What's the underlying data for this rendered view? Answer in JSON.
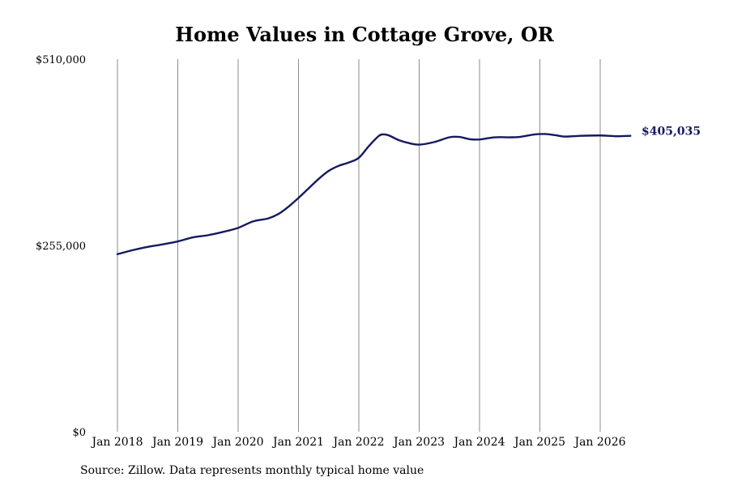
{
  "chart_data": {
    "type": "line",
    "title": "Home Values in Cottage Grove, OR",
    "source_note": "Source: Zillow. Data represents monthly typical home value",
    "ylim": [
      0,
      510000
    ],
    "yticks": [
      {
        "value": 0,
        "label": "$0"
      },
      {
        "value": 255000,
        "label": "$255,000"
      },
      {
        "value": 510000,
        "label": "$510,000"
      }
    ],
    "xticks": [
      {
        "value": "2018-01",
        "label": "Jan 2018"
      },
      {
        "value": "2019-01",
        "label": "Jan 2019"
      },
      {
        "value": "2020-01",
        "label": "Jan 2020"
      },
      {
        "value": "2021-01",
        "label": "Jan 2021"
      },
      {
        "value": "2022-01",
        "label": "Jan 2022"
      },
      {
        "value": "2023-01",
        "label": "Jan 2023"
      },
      {
        "value": "2024-01",
        "label": "Jan 2024"
      },
      {
        "value": "2025-01",
        "label": "Jan 2025"
      },
      {
        "value": "2026-01",
        "label": "Jan 2026"
      }
    ],
    "grid": "vertical",
    "line_color": "#141a5e",
    "end_label": "$405,035",
    "series": [
      {
        "points": [
          [
            "2018-01",
            243000
          ],
          [
            "2018-04",
            248500
          ],
          [
            "2018-07",
            253000
          ],
          [
            "2018-10",
            256500
          ],
          [
            "2019-01",
            260500
          ],
          [
            "2019-04",
            266000
          ],
          [
            "2019-07",
            269000
          ],
          [
            "2019-10",
            273500
          ],
          [
            "2020-01",
            279000
          ],
          [
            "2020-04",
            288000
          ],
          [
            "2020-07",
            292000
          ],
          [
            "2020-09",
            298000
          ],
          [
            "2020-11",
            308000
          ],
          [
            "2021-01",
            320000
          ],
          [
            "2021-03",
            333000
          ],
          [
            "2021-05",
            346000
          ],
          [
            "2021-07",
            357000
          ],
          [
            "2021-09",
            364000
          ],
          [
            "2021-11",
            368500
          ],
          [
            "2022-01",
            375000
          ],
          [
            "2022-03",
            391000
          ],
          [
            "2022-05",
            405000
          ],
          [
            "2022-06",
            407000
          ],
          [
            "2022-07",
            405500
          ],
          [
            "2022-09",
            399000
          ],
          [
            "2022-11",
            395000
          ],
          [
            "2023-01",
            393000
          ],
          [
            "2023-04",
            396500
          ],
          [
            "2023-07",
            403000
          ],
          [
            "2023-09",
            403500
          ],
          [
            "2023-11",
            400500
          ],
          [
            "2024-01",
            400000
          ],
          [
            "2024-04",
            403000
          ],
          [
            "2024-07",
            403000
          ],
          [
            "2024-09",
            403500
          ],
          [
            "2024-12",
            407000
          ],
          [
            "2025-02",
            407500
          ],
          [
            "2025-04",
            406000
          ],
          [
            "2025-06",
            404000
          ],
          [
            "2025-09",
            405000
          ],
          [
            "2026-01",
            405500
          ],
          [
            "2026-04",
            404500
          ],
          [
            "2026-07",
            405035
          ]
        ]
      }
    ]
  }
}
